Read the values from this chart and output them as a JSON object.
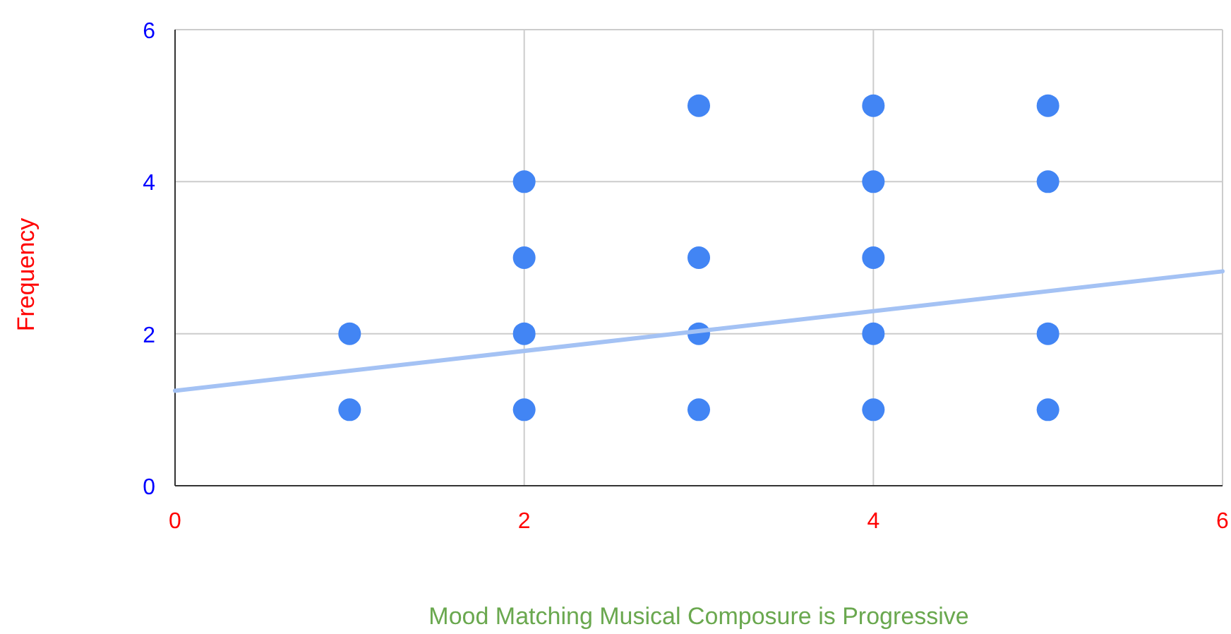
{
  "chart_data": {
    "type": "scatter",
    "xlabel": "Mood Matching Musical Composure is Progressive",
    "ylabel": "Frequency",
    "xlim": [
      0,
      6
    ],
    "xticks": [
      0,
      2,
      4,
      6
    ],
    "ylim": [
      0,
      6
    ],
    "yticks": [
      0,
      2,
      4,
      6
    ],
    "grid": true,
    "marker": "circle",
    "series": [
      {
        "color": "#4285f4",
        "x": [
          1,
          1,
          2,
          2,
          2,
          2,
          3,
          3,
          3,
          3,
          4,
          4,
          4,
          4,
          4,
          5,
          5,
          5,
          5
        ],
        "values": [
          1,
          2,
          1,
          2,
          3,
          4,
          1,
          2,
          3,
          5,
          1,
          2,
          3,
          4,
          5,
          1,
          2,
          4,
          5
        ]
      },
      {
        "type": "line",
        "color": "#a4c2f4",
        "marker": "none",
        "line_style": "solid",
        "x": [
          0,
          6
        ],
        "values": [
          1.25,
          2.82
        ]
      }
    ]
  }
}
